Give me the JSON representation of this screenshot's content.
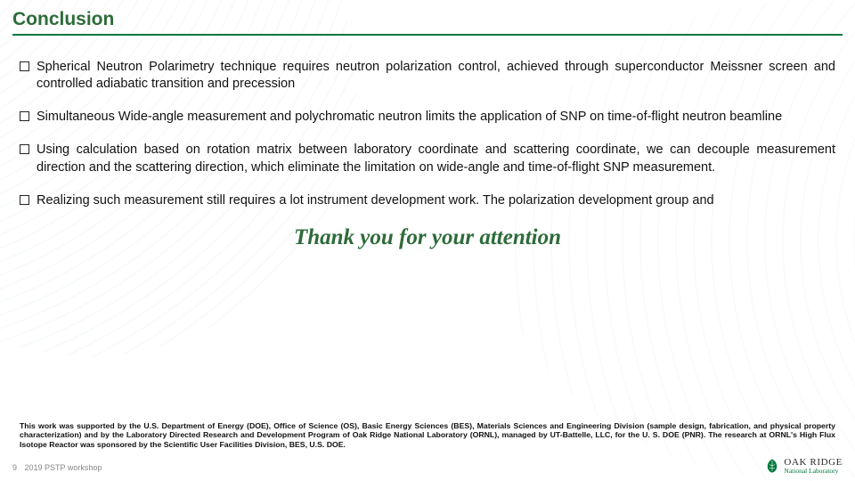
{
  "colors": {
    "title_text": "#2e6b3a",
    "underline": "#007a3d",
    "body_text": "#111111",
    "thank_you": "#2e6b3a",
    "footer_text": "#888888",
    "bullet_border": "#222222",
    "logo_green": "#007a3d"
  },
  "title": "Conclusion",
  "bullets": [
    "Spherical Neutron Polarimetry technique requires neutron polarization control, achieved through superconductor Meissner screen and controlled adiabatic transition and precession",
    "Simultaneous Wide-angle measurement and polychromatic neutron limits the application of SNP on time-of-flight neutron beamline",
    "Using calculation based on rotation matrix between laboratory coordinate and scattering coordinate, we can decouple measurement direction and the scattering direction, which eliminate the limitation on wide-angle and time-of-flight SNP measurement.",
    "Realizing such measurement still requires a lot instrument development work. The polarization development group and"
  ],
  "thank_you": "Thank you for your attention",
  "funding_text": "This work was supported by the U.S. Department of Energy (DOE), Office of Science (OS), Basic Energy Sciences (BES), Materials Sciences and Engineering Division (sample design, fabrication, and physical property characterization) and by the Laboratory Directed Research and Development Program of Oak Ridge National Laboratory (ORNL), managed by UT-Battelle, LLC, for the U. S. DOE (PNR). The research at ORNL's High Flux Isotope Reactor was sponsored by the Scientific User Facilities Division, BES, U.S. DOE.",
  "footer": {
    "page_number": "9",
    "event": "2019 PSTP workshop"
  },
  "logo": {
    "top": "OAK RIDGE",
    "bottom": "National Laboratory"
  }
}
